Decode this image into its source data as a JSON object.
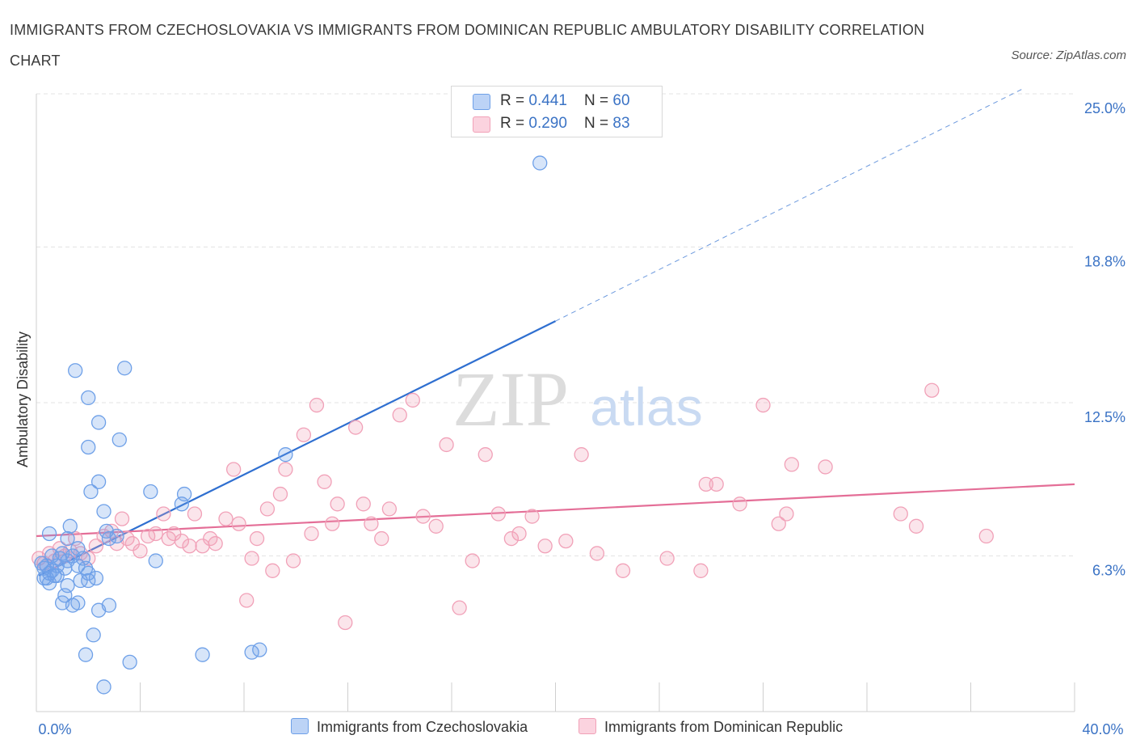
{
  "title": "IMMIGRANTS FROM CZECHOSLOVAKIA VS IMMIGRANTS FROM DOMINICAN REPUBLIC AMBULATORY DISABILITY CORRELATION CHART",
  "source": "Source: ZipAtlas.com",
  "watermark": {
    "zip": "ZIP",
    "atlas": "atlas"
  },
  "legend": {
    "rows": [
      {
        "r_label": "R = ",
        "r_value": "0.441",
        "n_label": "N = ",
        "n_value": "60",
        "color": "#6ea0e8"
      },
      {
        "r_label": "R = ",
        "r_value": "0.290",
        "n_label": "N = ",
        "n_value": "83",
        "color": "#f1a1b8"
      }
    ]
  },
  "bottom_legend": [
    "Immigrants from Czechoslovakia",
    "Immigrants from Dominican Republic"
  ],
  "chart_data": {
    "type": "scatter",
    "title": "IMMIGRANTS FROM CZECHOSLOVAKIA VS IMMIGRANTS FROM DOMINICAN REPUBLIC AMBULATORY DISABILITY CORRELATION CHART",
    "xlabel": "",
    "ylabel": "Ambulatory Disability",
    "xlim": [
      0,
      40
    ],
    "ylim": [
      0,
      25.0
    ],
    "x_tick_labels": [
      "0.0%",
      "40.0%"
    ],
    "y_ticks": [
      6.3,
      12.5,
      18.8,
      25.0
    ],
    "y_tick_labels": [
      "6.3%",
      "12.5%",
      "18.8%",
      "25.0%"
    ],
    "grid": true,
    "legend_position": "top-center",
    "series": [
      {
        "name": "Immigrants from Czechoslovakia",
        "color": "#6ea0e8",
        "line_color": "#2f6fd0",
        "R": 0.441,
        "N": 60,
        "trend": {
          "x0": 0.1,
          "y0": 5.5,
          "x1": 20.0,
          "y1": 15.8,
          "dashed_to_x": 38.0,
          "dashed_to_y": 25.2
        },
        "points": [
          [
            0.2,
            6.0
          ],
          [
            0.3,
            5.8
          ],
          [
            0.3,
            5.4
          ],
          [
            0.4,
            5.9
          ],
          [
            0.5,
            5.6
          ],
          [
            0.5,
            5.2
          ],
          [
            0.6,
            5.7
          ],
          [
            0.6,
            6.3
          ],
          [
            0.7,
            5.5
          ],
          [
            0.8,
            5.9
          ],
          [
            0.9,
            6.2
          ],
          [
            1.0,
            6.4
          ],
          [
            1.1,
            5.8
          ],
          [
            1.2,
            6.1
          ],
          [
            1.4,
            6.3
          ],
          [
            1.6,
            6.6
          ],
          [
            1.8,
            6.2
          ],
          [
            1.9,
            5.8
          ],
          [
            0.5,
            7.2
          ],
          [
            1.2,
            7.0
          ],
          [
            1.3,
            7.5
          ],
          [
            1.5,
            13.8
          ],
          [
            2.0,
            12.7
          ],
          [
            2.0,
            10.7
          ],
          [
            2.4,
            11.7
          ],
          [
            2.1,
            8.9
          ],
          [
            2.4,
            9.3
          ],
          [
            2.6,
            8.1
          ],
          [
            2.7,
            7.3
          ],
          [
            3.2,
            11.0
          ],
          [
            3.4,
            13.9
          ],
          [
            3.1,
            7.1
          ],
          [
            2.8,
            7.0
          ],
          [
            4.4,
            8.9
          ],
          [
            5.7,
            8.8
          ],
          [
            5.6,
            8.4
          ],
          [
            4.6,
            6.1
          ],
          [
            1.0,
            4.4
          ],
          [
            1.1,
            4.7
          ],
          [
            1.4,
            4.3
          ],
          [
            1.6,
            4.4
          ],
          [
            1.7,
            5.3
          ],
          [
            2.0,
            5.3
          ],
          [
            2.3,
            5.4
          ],
          [
            2.4,
            4.1
          ],
          [
            2.8,
            4.3
          ],
          [
            2.2,
            3.1
          ],
          [
            1.9,
            2.3
          ],
          [
            3.6,
            2.0
          ],
          [
            6.4,
            2.3
          ],
          [
            8.3,
            2.4
          ],
          [
            8.6,
            2.5
          ],
          [
            2.6,
            1.0
          ],
          [
            1.2,
            5.1
          ],
          [
            0.8,
            5.5
          ],
          [
            19.4,
            22.2
          ],
          [
            9.6,
            10.4
          ],
          [
            1.6,
            5.9
          ],
          [
            2.0,
            5.6
          ],
          [
            0.4,
            5.4
          ]
        ]
      },
      {
        "name": "Immigrants from Dominican Republic",
        "color": "#f1a1b8",
        "line_color": "#e46e97",
        "R": 0.29,
        "N": 83,
        "trend": {
          "x0": 0.0,
          "y0": 7.1,
          "x1": 40.0,
          "y1": 9.2
        },
        "points": [
          [
            0.1,
            6.2
          ],
          [
            0.3,
            6.0
          ],
          [
            0.5,
            6.4
          ],
          [
            0.7,
            6.1
          ],
          [
            0.9,
            6.6
          ],
          [
            1.1,
            6.3
          ],
          [
            1.3,
            6.5
          ],
          [
            1.5,
            7.0
          ],
          [
            1.7,
            6.4
          ],
          [
            2.0,
            6.2
          ],
          [
            2.3,
            6.7
          ],
          [
            2.6,
            7.1
          ],
          [
            2.9,
            7.3
          ],
          [
            3.1,
            6.8
          ],
          [
            3.3,
            7.8
          ],
          [
            3.5,
            7.0
          ],
          [
            3.7,
            6.8
          ],
          [
            4.0,
            6.5
          ],
          [
            4.3,
            7.1
          ],
          [
            4.6,
            7.2
          ],
          [
            4.9,
            8.0
          ],
          [
            5.1,
            7.0
          ],
          [
            5.3,
            7.2
          ],
          [
            5.6,
            6.9
          ],
          [
            5.9,
            6.7
          ],
          [
            6.1,
            8.0
          ],
          [
            6.4,
            6.7
          ],
          [
            6.7,
            7.0
          ],
          [
            6.9,
            6.8
          ],
          [
            7.3,
            7.8
          ],
          [
            7.6,
            9.8
          ],
          [
            7.8,
            7.6
          ],
          [
            8.1,
            4.5
          ],
          [
            8.3,
            6.2
          ],
          [
            8.5,
            7.0
          ],
          [
            8.9,
            8.2
          ],
          [
            9.1,
            5.7
          ],
          [
            9.4,
            8.8
          ],
          [
            9.6,
            9.8
          ],
          [
            9.9,
            6.1
          ],
          [
            10.3,
            11.2
          ],
          [
            10.6,
            7.2
          ],
          [
            10.8,
            12.4
          ],
          [
            11.1,
            9.3
          ],
          [
            11.4,
            7.6
          ],
          [
            11.6,
            8.4
          ],
          [
            11.9,
            3.6
          ],
          [
            12.3,
            11.5
          ],
          [
            12.6,
            8.4
          ],
          [
            12.9,
            7.6
          ],
          [
            13.3,
            7.0
          ],
          [
            13.6,
            8.2
          ],
          [
            14.0,
            12.0
          ],
          [
            14.5,
            12.6
          ],
          [
            14.9,
            7.9
          ],
          [
            15.4,
            7.5
          ],
          [
            15.8,
            10.8
          ],
          [
            16.3,
            4.2
          ],
          [
            16.8,
            6.1
          ],
          [
            17.3,
            10.4
          ],
          [
            17.8,
            8.0
          ],
          [
            18.3,
            7.0
          ],
          [
            18.6,
            7.2
          ],
          [
            19.1,
            7.9
          ],
          [
            19.6,
            6.7
          ],
          [
            20.4,
            6.9
          ],
          [
            21.0,
            10.4
          ],
          [
            21.6,
            6.4
          ],
          [
            22.6,
            5.7
          ],
          [
            24.3,
            6.2
          ],
          [
            25.6,
            5.7
          ],
          [
            25.8,
            9.2
          ],
          [
            26.2,
            9.2
          ],
          [
            27.1,
            8.4
          ],
          [
            28.0,
            12.4
          ],
          [
            28.6,
            7.6
          ],
          [
            28.9,
            8.0
          ],
          [
            29.1,
            10.0
          ],
          [
            30.4,
            9.9
          ],
          [
            33.3,
            8.0
          ],
          [
            33.9,
            7.5
          ],
          [
            34.5,
            13.0
          ],
          [
            36.6,
            7.1
          ]
        ]
      }
    ]
  }
}
